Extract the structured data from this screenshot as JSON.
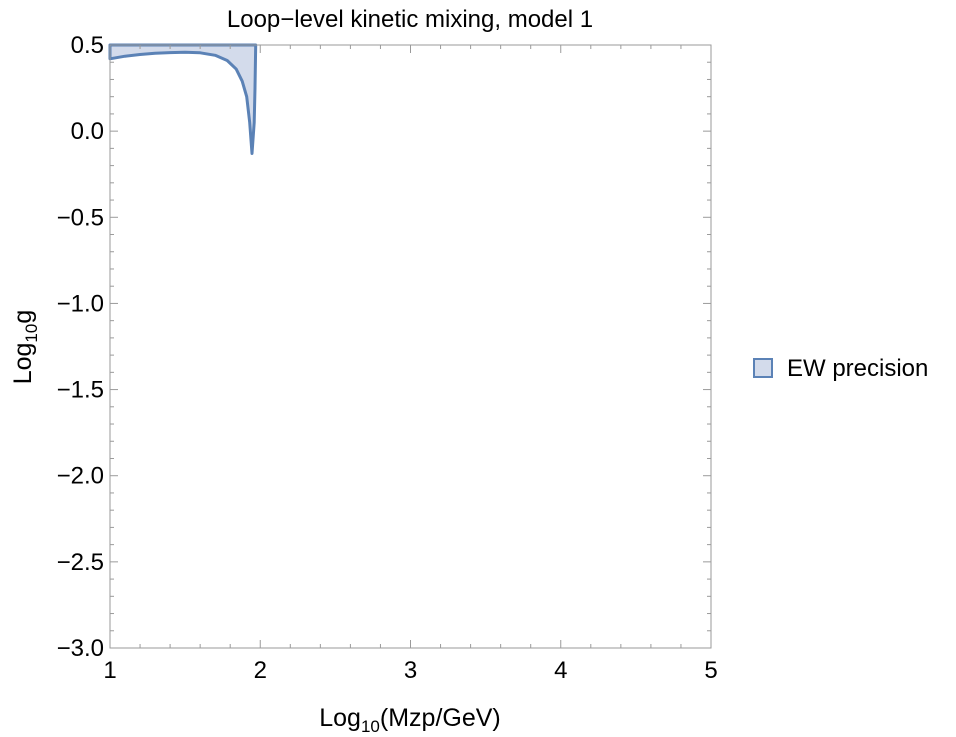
{
  "chart_data": {
    "type": "area",
    "title": "Loop−level kinetic mixing, model 1",
    "xlabel": {
      "prefix": "Log",
      "sub": "10",
      "suffix": "(Mzp/GeV)"
    },
    "ylabel": {
      "prefix": "Log",
      "sub": "10",
      "suffix": "g"
    },
    "xlim": [
      1,
      5
    ],
    "ylim": [
      -3.0,
      0.5
    ],
    "x_ticks": [
      {
        "value": 1,
        "label": "1"
      },
      {
        "value": 2,
        "label": "2"
      },
      {
        "value": 3,
        "label": "3"
      },
      {
        "value": 4,
        "label": "4"
      },
      {
        "value": 5,
        "label": "5"
      }
    ],
    "y_ticks": [
      {
        "value": 0.5,
        "label": "0.5"
      },
      {
        "value": 0.0,
        "label": "0.0"
      },
      {
        "value": -0.5,
        "label": "−0.5"
      },
      {
        "value": -1.0,
        "label": "−1.0"
      },
      {
        "value": -1.5,
        "label": "−1.5"
      },
      {
        "value": -2.0,
        "label": "−2.0"
      },
      {
        "value": -2.5,
        "label": "−2.5"
      },
      {
        "value": -3.0,
        "label": "−3.0"
      }
    ],
    "grid": false,
    "legend_position": "right",
    "series": [
      {
        "name": "EW precision",
        "color": "#5b82b6",
        "fill": "#d3dbeb",
        "region_upper_y": 0.5,
        "boundary": [
          {
            "x": 1.0,
            "y": 0.42
          },
          {
            "x": 1.1,
            "y": 0.435
          },
          {
            "x": 1.2,
            "y": 0.445
          },
          {
            "x": 1.3,
            "y": 0.452
          },
          {
            "x": 1.4,
            "y": 0.456
          },
          {
            "x": 1.5,
            "y": 0.458
          },
          {
            "x": 1.6,
            "y": 0.455
          },
          {
            "x": 1.7,
            "y": 0.44
          },
          {
            "x": 1.78,
            "y": 0.41
          },
          {
            "x": 1.84,
            "y": 0.36
          },
          {
            "x": 1.88,
            "y": 0.29
          },
          {
            "x": 1.91,
            "y": 0.2
          },
          {
            "x": 1.93,
            "y": 0.05
          },
          {
            "x": 1.945,
            "y": -0.13
          },
          {
            "x": 1.96,
            "y": 0.05
          },
          {
            "x": 1.965,
            "y": 0.25
          },
          {
            "x": 1.97,
            "y": 0.5
          }
        ]
      }
    ]
  }
}
